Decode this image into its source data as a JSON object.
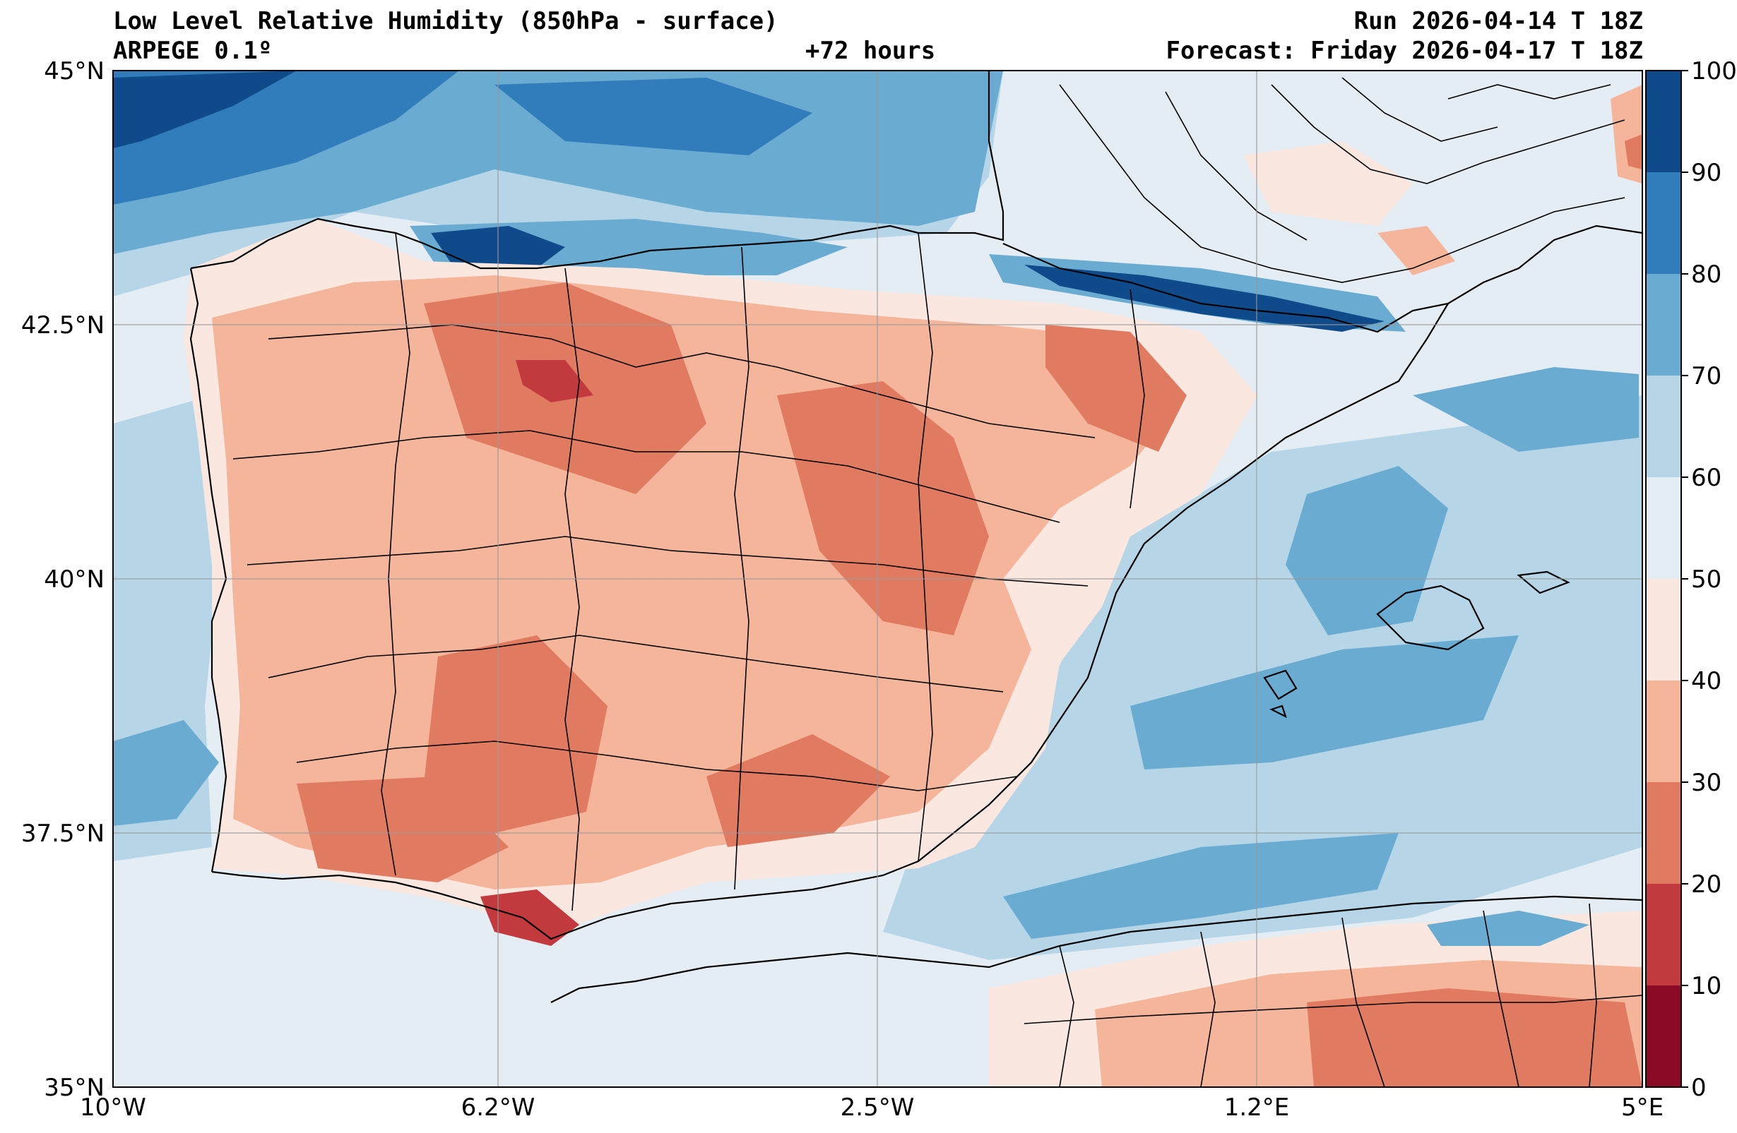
{
  "header": {
    "title": "Low Level Relative Humidity (850hPa - surface)",
    "model": "ARPEGE 0.1º",
    "lead_time": "+72 hours",
    "run": "Run 2026-04-14 T 18Z",
    "forecast": "Forecast: Friday 2026-04-17 T 18Z"
  },
  "map": {
    "variable": "Relative humidity",
    "units": "%",
    "lon_range": [
      -10,
      5
    ],
    "lat_range": [
      35,
      45
    ],
    "lon_ticks": [
      {
        "value": -10,
        "label": "10°W"
      },
      {
        "value": -6.2,
        "label": "6.2°W"
      },
      {
        "value": -2.5,
        "label": "2.5°W"
      },
      {
        "value": 1.2,
        "label": "1.2°E"
      },
      {
        "value": 5,
        "label": "5°E"
      }
    ],
    "lat_ticks": [
      {
        "value": 45,
        "label": "45°N"
      },
      {
        "value": 42.5,
        "label": "42.5°N"
      },
      {
        "value": 40,
        "label": "40°N"
      },
      {
        "value": 37.5,
        "label": "37.5°N"
      },
      {
        "value": 35,
        "label": "35°N"
      }
    ]
  },
  "colorbar": {
    "levels": [
      "0",
      "10",
      "20",
      "30",
      "40",
      "50",
      "60",
      "70",
      "80",
      "90",
      "100"
    ],
    "colors": [
      "#8b0a26",
      "#c23a3d",
      "#e07b62",
      "#f5b59a",
      "#fae7df",
      "#e5edf4",
      "#b6d6e8",
      "#6aacd1",
      "#317cbb",
      "#0f4b8a"
    ]
  }
}
